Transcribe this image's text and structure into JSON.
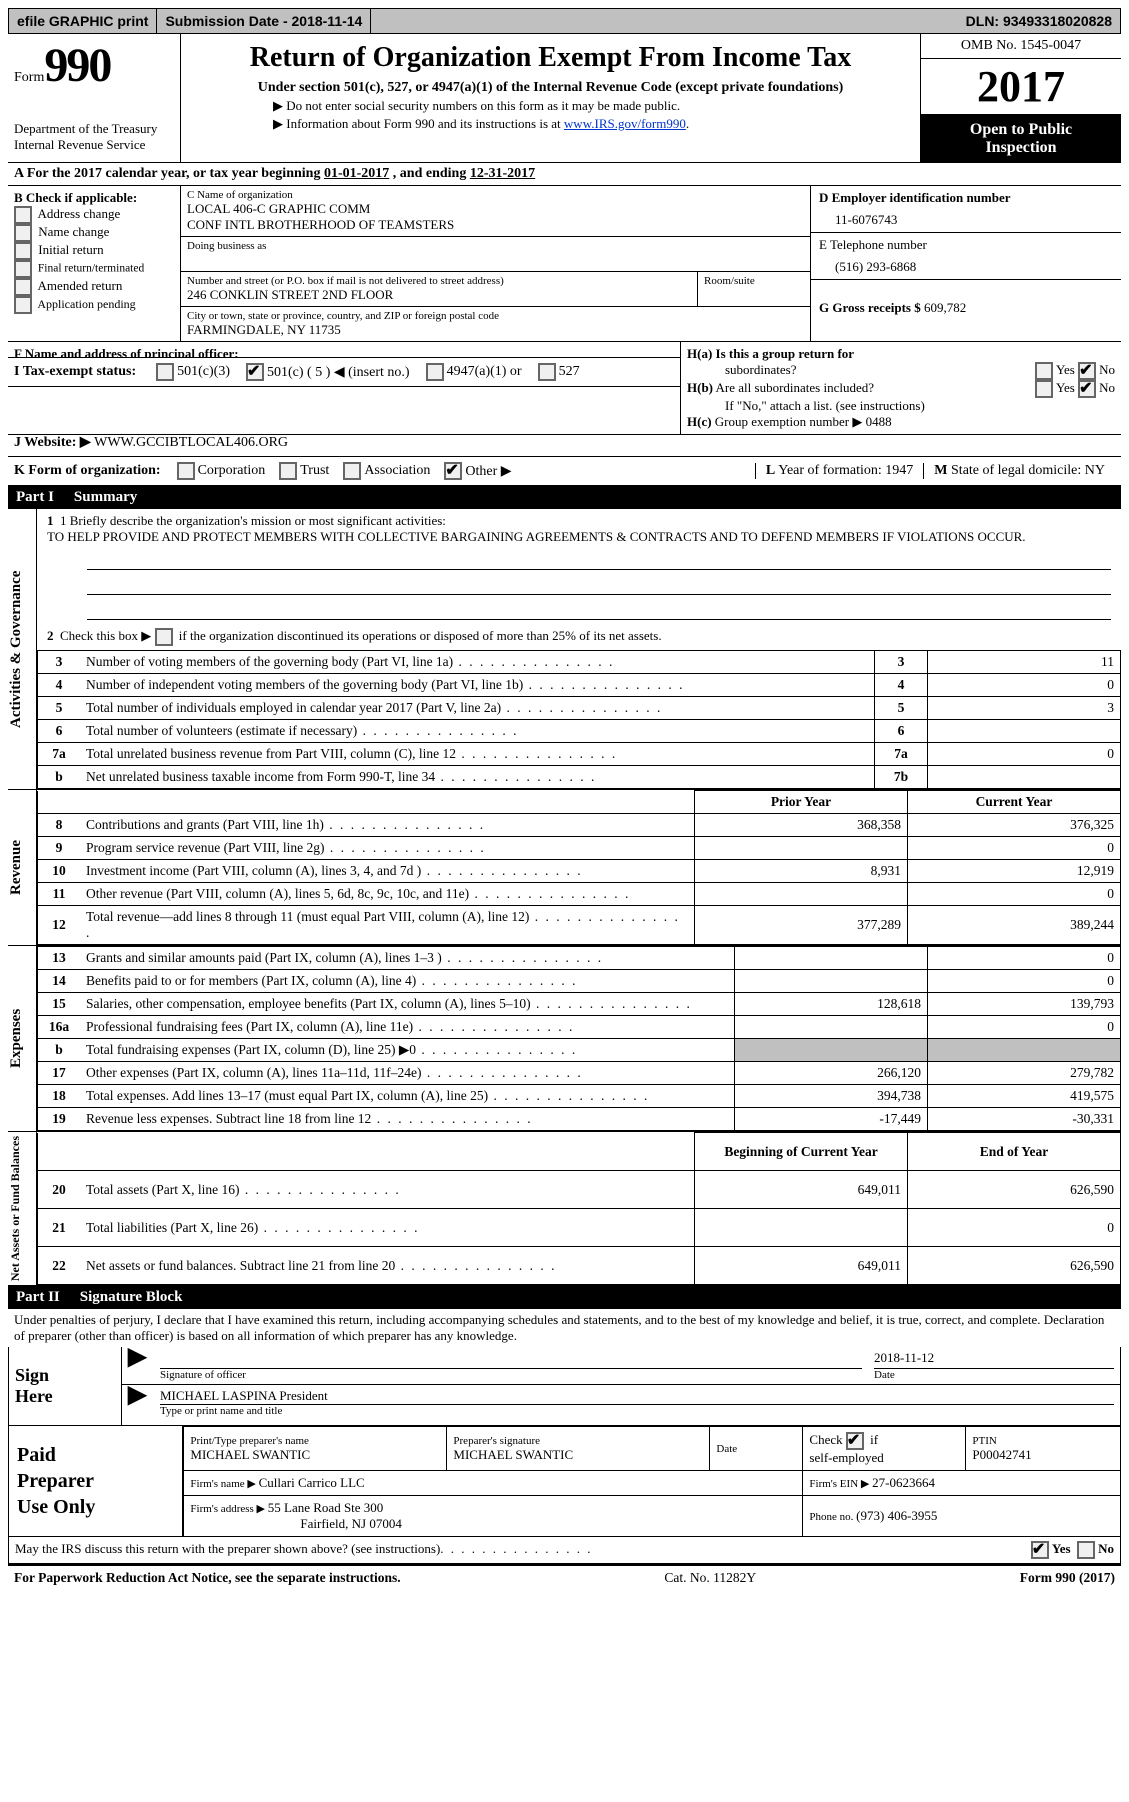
{
  "topbar": {
    "efile": "efile GRAPHIC print",
    "submission_label": "Submission Date - ",
    "submission_date": "2018-11-14",
    "dln_label": "DLN: ",
    "dln": "93493318020828"
  },
  "header": {
    "form_word": "Form",
    "form_num": "990",
    "dept1": "Department of the Treasury",
    "dept2": "Internal Revenue Service",
    "title": "Return of Organization Exempt From Income Tax",
    "subtitle": "Under section 501(c), 527, or 4947(a)(1) of the Internal Revenue Code (except private foundations)",
    "arrow1": "▶ Do not enter social security numbers on this form as it may be made public.",
    "arrow2_a": "▶ Information about Form 990 and its instructions is at ",
    "irs_link": "www.IRS.gov/form990",
    "omb": "OMB No. 1545-0047",
    "year": "2017",
    "open1": "Open to Public",
    "open2": "Inspection"
  },
  "rowA": {
    "prefix": "A   For the 2017 calendar year, or tax year beginning ",
    "begin": "01-01-2017",
    "mid": "   , and ending ",
    "end": "12-31-2017"
  },
  "colB": {
    "heading": "B Check if applicable:",
    "items": [
      "Address change",
      "Name change",
      "Initial return",
      "Final return/terminated",
      "Amended return",
      "Application pending"
    ]
  },
  "colC": {
    "name_label": "C Name of organization",
    "name1": "LOCAL 406-C GRAPHIC COMM",
    "name2": "CONF INTL BROTHERHOOD OF TEAMSTERS",
    "dba_label": "Doing business as",
    "addr_label": "Number and street (or P.O. box if mail is not delivered to street address)",
    "room_label": "Room/suite",
    "addr": "246 CONKLIN STREET 2ND FLOOR",
    "city_label": "City or town, state or province, country, and ZIP or foreign postal code",
    "city": "FARMINGDALE, NY  11735",
    "F_label": "F Name and address of principal officer:"
  },
  "colD": {
    "ein_label": "D Employer identification number",
    "ein": "11-6076743",
    "phone_label": "E Telephone number",
    "phone": "(516) 293-6868",
    "gross_label": "G Gross receipts $ ",
    "gross": "609,782"
  },
  "colH": {
    "ha": "H(a)  Is this a group return for",
    "ha2": "subordinates?",
    "hb": "H(b)  Are all subordinates included?",
    "hb_note": "If \"No,\" attach a list. (see instructions)",
    "hc": "H(c)  Group exemption number ▶   ",
    "hc_val": "0488",
    "yes": "Yes",
    "no": "No"
  },
  "taxrow": {
    "label": "I   Tax-exempt status:",
    "c3": "501(c)(3)",
    "c": "501(c) ( 5 ) ◀ (insert no.)",
    "a1": "4947(a)(1) or",
    "s527": "527"
  },
  "rowJ": {
    "label": "J   Website: ▶  ",
    "val": "WWW.GCCIBTLOCAL406.ORG"
  },
  "rowK": {
    "label": "K Form of organization:",
    "corp": "Corporation",
    "trust": "Trust",
    "assoc": "Association",
    "other": "Other ▶",
    "L": "L Year of formation: ",
    "L_val": "1947",
    "M": "M State of legal domicile: ",
    "M_val": "NY"
  },
  "part1": {
    "num": "Part I",
    "title": "Summary"
  },
  "summary": {
    "line1_label": "1  Briefly describe the organization's mission or most significant activities:",
    "line1_text": "TO HELP PROVIDE AND PROTECT MEMBERS WITH COLLECTIVE BARGAINING AGREEMENTS & CONTRACTS AND TO DEFEND MEMBERS IF VIOLATIONS OCCUR.",
    "line2": "Check this box ▶        if the organization discontinued its operations or disposed of more than 25% of its net assets.",
    "prior_hdr": "Prior Year",
    "current_hdr": "Current Year",
    "boy_hdr": "Beginning of Current Year",
    "eoy_hdr": "End of Year",
    "rows_gov": [
      {
        "n": "3",
        "t": "Number of voting members of the governing body (Part VI, line 1a)",
        "ln": "3",
        "v": "11"
      },
      {
        "n": "4",
        "t": "Number of independent voting members of the governing body (Part VI, line 1b)",
        "ln": "4",
        "v": "0"
      },
      {
        "n": "5",
        "t": "Total number of individuals employed in calendar year 2017 (Part V, line 2a)",
        "ln": "5",
        "v": "3"
      },
      {
        "n": "6",
        "t": "Total number of volunteers (estimate if necessary)",
        "ln": "6",
        "v": ""
      },
      {
        "n": "7a",
        "t": "Total unrelated business revenue from Part VIII, column (C), line 12",
        "ln": "7a",
        "v": "0"
      },
      {
        "n": "b",
        "t": "Net unrelated business taxable income from Form 990-T, line 34",
        "ln": "7b",
        "v": ""
      }
    ],
    "rows_rev": [
      {
        "n": "8",
        "t": "Contributions and grants (Part VIII, line 1h)",
        "p": "368,358",
        "c": "376,325"
      },
      {
        "n": "9",
        "t": "Program service revenue (Part VIII, line 2g)",
        "p": "",
        "c": "0"
      },
      {
        "n": "10",
        "t": "Investment income (Part VIII, column (A), lines 3, 4, and 7d )",
        "p": "8,931",
        "c": "12,919"
      },
      {
        "n": "11",
        "t": "Other revenue (Part VIII, column (A), lines 5, 6d, 8c, 9c, 10c, and 11e)",
        "p": "",
        "c": "0"
      },
      {
        "n": "12",
        "t": "Total revenue—add lines 8 through 11 (must equal Part VIII, column (A), line 12)",
        "p": "377,289",
        "c": "389,244"
      }
    ],
    "rows_exp": [
      {
        "n": "13",
        "t": "Grants and similar amounts paid (Part IX, column (A), lines 1–3 )",
        "p": "",
        "c": "0"
      },
      {
        "n": "14",
        "t": "Benefits paid to or for members (Part IX, column (A), line 4)",
        "p": "",
        "c": "0"
      },
      {
        "n": "15",
        "t": "Salaries, other compensation, employee benefits (Part IX, column (A), lines 5–10)",
        "p": "128,618",
        "c": "139,793"
      },
      {
        "n": "16a",
        "t": "Professional fundraising fees (Part IX, column (A), line 11e)",
        "p": "",
        "c": "0"
      },
      {
        "n": "b",
        "t": "Total fundraising expenses (Part IX, column (D), line 25) ▶0",
        "p": "grey",
        "c": "grey"
      },
      {
        "n": "17",
        "t": "Other expenses (Part IX, column (A), lines 11a–11d, 11f–24e)",
        "p": "266,120",
        "c": "279,782"
      },
      {
        "n": "18",
        "t": "Total expenses. Add lines 13–17 (must equal Part IX, column (A), line 25)",
        "p": "394,738",
        "c": "419,575"
      },
      {
        "n": "19",
        "t": "Revenue less expenses. Subtract line 18 from line 12",
        "p": "-17,449",
        "c": "-30,331"
      }
    ],
    "rows_net": [
      {
        "n": "20",
        "t": "Total assets (Part X, line 16)",
        "p": "649,011",
        "c": "626,590"
      },
      {
        "n": "21",
        "t": "Total liabilities (Part X, line 26)",
        "p": "",
        "c": "0"
      },
      {
        "n": "22",
        "t": "Net assets or fund balances. Subtract line 21 from line 20",
        "p": "649,011",
        "c": "626,590"
      }
    ],
    "side_gov": "Activities & Governance",
    "side_rev": "Revenue",
    "side_exp": "Expenses",
    "side_net": "Net Assets or Fund Balances"
  },
  "part2": {
    "num": "Part II",
    "title": "Signature Block"
  },
  "sig": {
    "declaration": "Under penalties of perjury, I declare that I have examined this return, including accompanying schedules and statements, and to the best of my knowledge and belief, it is true, correct, and complete. Declaration of preparer (other than officer) is based on all information of which preparer has any knowledge.",
    "sign_here": "Sign Here",
    "sig_officer": "Signature of officer",
    "date_label": "Date",
    "date_val": "2018-11-12",
    "officer_name": "MICHAEL LASPINA President",
    "type_name": "Type or print name and title"
  },
  "paid": {
    "title": "Paid Preparer Use Only",
    "name_label": "Print/Type preparer's name",
    "name": "MICHAEL SWANTIC",
    "sig_label": "Preparer's signature",
    "sig": "MICHAEL SWANTIC",
    "date_label": "Date",
    "check_label": "Check          if self-employed",
    "ptin_label": "PTIN",
    "ptin": "P00042741",
    "firm_name_label": "Firm's name     ▶ ",
    "firm_name": "Cullari Carrico LLC",
    "firm_ein_label": "Firm's EIN ▶ ",
    "firm_ein": "27-0623664",
    "firm_addr_label": "Firm's address ▶ ",
    "firm_addr1": "55 Lane Road Ste 300",
    "firm_addr2": "Fairfield, NJ  07004",
    "phone_label": "Phone no. ",
    "phone": "(973) 406-3955"
  },
  "discuss": {
    "text": "May the IRS discuss this return with the preparer shown above? (see instructions)",
    "yes": "Yes",
    "no": "No"
  },
  "footer": {
    "left": "For Paperwork Reduction Act Notice, see the separate instructions.",
    "mid": "Cat. No. 11282Y",
    "right": "Form 990 (2017)"
  }
}
